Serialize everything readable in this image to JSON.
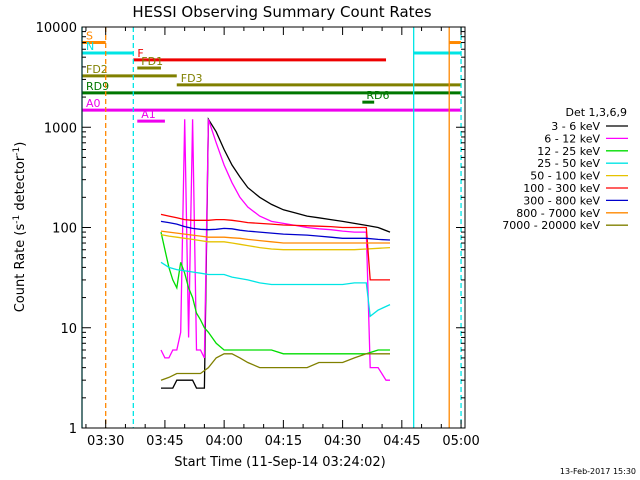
{
  "chart_data": {
    "type": "line",
    "title": "HESSI Observing Summary Count Rates",
    "xlabel": "Start Time (11-Sep-14 03:24:02)",
    "ylabel_main": "Count Rate (s",
    "ylabel_sup1": "-1",
    "ylabel_mid": " detector",
    "ylabel_sup2": "-1",
    "ylabel_end": ")",
    "xlim_minutes": [
      0,
      97
    ],
    "ylim": [
      1,
      10000
    ],
    "yscale": "log",
    "x_ticks": [
      {
        "label": "03:30",
        "minute": 6
      },
      {
        "label": "03:45",
        "minute": 21
      },
      {
        "label": "04:00",
        "minute": 36
      },
      {
        "label": "04:15",
        "minute": 51
      },
      {
        "label": "04:30",
        "minute": 66
      },
      {
        "label": "04:45",
        "minute": 81
      },
      {
        "label": "05:00",
        "minute": 96
      }
    ],
    "y_ticks": [
      {
        "label": "1",
        "value": 1
      },
      {
        "label": "10",
        "value": 10
      },
      {
        "label": "100",
        "value": 100
      },
      {
        "label": "1000",
        "value": 1000
      },
      {
        "label": "10000",
        "value": 10000
      }
    ],
    "legend_title": "Det 1,3,6,9",
    "timestamp": "13-Feb-2017 15:30",
    "series": [
      {
        "name": "3 - 6 keV",
        "color": "#000000",
        "x": [
          20,
          21,
          22,
          23,
          24,
          25,
          26,
          27,
          28,
          29,
          30,
          31,
          32,
          34,
          36,
          38,
          40,
          42,
          45,
          48,
          51,
          54,
          57,
          60,
          63,
          66,
          69,
          72,
          75,
          78
        ],
        "y": [
          2.5,
          2.5,
          2.5,
          2.5,
          3,
          3,
          3,
          3,
          3,
          2.5,
          2.5,
          2.5,
          1200,
          900,
          600,
          420,
          320,
          250,
          200,
          170,
          150,
          140,
          130,
          125,
          120,
          115,
          110,
          105,
          100,
          90
        ]
      },
      {
        "name": "6 - 12 keV",
        "color": "#ff00ff",
        "x": [
          20,
          21,
          22,
          23,
          24,
          25,
          26,
          27,
          28,
          29,
          30,
          31,
          32,
          34,
          36,
          38,
          40,
          42,
          45,
          48,
          51,
          54,
          57,
          60,
          63,
          66,
          69,
          72,
          73,
          75,
          77,
          78
        ],
        "y": [
          6,
          5,
          5,
          6,
          6,
          9,
          1200,
          8,
          1200,
          6,
          6,
          5,
          1200,
          700,
          420,
          280,
          200,
          160,
          130,
          115,
          110,
          105,
          100,
          97,
          95,
          92,
          90,
          90,
          4,
          4,
          3,
          3
        ]
      },
      {
        "name": "12 - 25 keV",
        "color": "#00dd00",
        "x": [
          20,
          21,
          22,
          23,
          24,
          25,
          26,
          27,
          28,
          29,
          30,
          31,
          32,
          34,
          36,
          38,
          40,
          42,
          45,
          48,
          51,
          54,
          57,
          60,
          63,
          66,
          69,
          72,
          75,
          78
        ],
        "y": [
          90,
          60,
          40,
          30,
          25,
          45,
          35,
          25,
          20,
          14,
          12,
          10,
          9,
          7,
          6,
          6,
          6,
          6,
          6,
          6,
          5.5,
          5.5,
          5.5,
          5.5,
          5.5,
          5.5,
          5.5,
          5.5,
          6,
          6
        ]
      },
      {
        "name": "25 - 50 keV",
        "color": "#00e5e5",
        "x": [
          20,
          22,
          24,
          26,
          28,
          30,
          32,
          34,
          36,
          38,
          40,
          42,
          45,
          48,
          51,
          54,
          57,
          60,
          63,
          66,
          69,
          72,
          73,
          75,
          78
        ],
        "y": [
          45,
          40,
          38,
          37,
          36,
          35,
          34,
          34,
          34,
          32,
          31,
          30,
          28,
          27,
          27,
          27,
          27,
          27,
          27,
          27,
          28,
          28,
          13,
          15,
          17
        ]
      },
      {
        "name": "50 - 100 keV",
        "color": "#e6c200",
        "x": [
          20,
          22,
          24,
          26,
          28,
          30,
          32,
          34,
          36,
          38,
          40,
          42,
          45,
          48,
          51,
          54,
          57,
          60,
          63,
          66,
          69,
          72,
          75,
          78
        ],
        "y": [
          85,
          82,
          80,
          78,
          76,
          74,
          72,
          72,
          72,
          70,
          68,
          66,
          63,
          61,
          60,
          60,
          60,
          60,
          60,
          60,
          60,
          61,
          62,
          63
        ]
      },
      {
        "name": "100 - 300 keV",
        "color": "#ff0000",
        "x": [
          20,
          22,
          24,
          26,
          28,
          30,
          32,
          34,
          36,
          38,
          40,
          42,
          45,
          48,
          51,
          54,
          57,
          60,
          63,
          66,
          69,
          72,
          73,
          75,
          78
        ],
        "y": [
          135,
          130,
          125,
          120,
          118,
          118,
          118,
          120,
          120,
          118,
          115,
          112,
          110,
          108,
          106,
          105,
          104,
          103,
          102,
          100,
          100,
          100,
          30,
          30,
          30
        ]
      },
      {
        "name": "300 - 800 keV",
        "color": "#0000cc",
        "x": [
          20,
          22,
          24,
          26,
          28,
          30,
          32,
          34,
          36,
          38,
          40,
          42,
          45,
          48,
          51,
          54,
          57,
          60,
          63,
          66,
          69,
          72,
          75,
          78
        ],
        "y": [
          115,
          112,
          108,
          102,
          98,
          96,
          95,
          96,
          98,
          97,
          94,
          92,
          90,
          88,
          86,
          85,
          84,
          82,
          80,
          78,
          78,
          78,
          76,
          75
        ]
      },
      {
        "name": "800 - 7000 keV",
        "color": "#ff8800",
        "x": [
          20,
          22,
          24,
          26,
          28,
          30,
          32,
          34,
          36,
          38,
          40,
          42,
          45,
          48,
          51,
          54,
          57,
          60,
          63,
          66,
          69,
          72,
          75,
          78
        ],
        "y": [
          92,
          90,
          88,
          86,
          84,
          82,
          80,
          80,
          80,
          79,
          78,
          76,
          74,
          72,
          70,
          70,
          70,
          70,
          70,
          70,
          70,
          70,
          70,
          70
        ]
      },
      {
        "name": "7000 - 20000 keV",
        "color": "#808000",
        "x": [
          20,
          22,
          24,
          26,
          28,
          30,
          32,
          34,
          36,
          38,
          40,
          42,
          45,
          48,
          51,
          54,
          57,
          60,
          63,
          66,
          69,
          72,
          75,
          78
        ],
        "y": [
          3,
          3.2,
          3.5,
          3.5,
          3.5,
          3.5,
          4,
          5,
          5.5,
          5.5,
          5,
          4.5,
          4,
          4,
          4,
          4,
          4,
          4.5,
          4.5,
          4.5,
          5,
          5.5,
          5.5,
          5.5
        ]
      }
    ],
    "flag_bars": [
      {
        "label": "S",
        "color": "#ff8800",
        "y": 7000,
        "segments": [
          [
            0,
            6
          ],
          [
            93,
            96
          ]
        ]
      },
      {
        "label": "N",
        "color": "#00e5e5",
        "y": 5500,
        "segments": [
          [
            0,
            13
          ],
          [
            84,
            96
          ]
        ]
      },
      {
        "label": "F",
        "color": "#ee0000",
        "y": 4700,
        "segments": [
          [
            13,
            77
          ]
        ]
      },
      {
        "label": "FD1",
        "color": "#808000",
        "y": 3900,
        "segments": [
          [
            14,
            20
          ]
        ]
      },
      {
        "label": "FD2",
        "color": "#808000",
        "y": 3250,
        "segments": [
          [
            0,
            24
          ]
        ]
      },
      {
        "label": "FD3",
        "color": "#808000",
        "y": 2650,
        "segments": [
          [
            24,
            96
          ]
        ]
      },
      {
        "label": "RD9",
        "color": "#007700",
        "y": 2200,
        "segments": [
          [
            0,
            96
          ]
        ]
      },
      {
        "label": "RD6",
        "color": "#007700",
        "y": 1780,
        "segments": [
          [
            71,
            74
          ]
        ]
      },
      {
        "label": "A0",
        "color": "#ee00ee",
        "y": 1480,
        "segments": [
          [
            0,
            96
          ]
        ]
      },
      {
        "label": "A1",
        "color": "#ee00ee",
        "y": 1150,
        "segments": [
          [
            14,
            21
          ]
        ]
      }
    ],
    "vlines": [
      {
        "minute": 0,
        "color": "#00e5e5",
        "dashed": false
      },
      {
        "minute": 6,
        "color": "#ff8800",
        "dashed": true
      },
      {
        "minute": 13,
        "color": "#00e5e5",
        "dashed": true
      },
      {
        "minute": 84,
        "color": "#00e5e5",
        "dashed": false
      },
      {
        "minute": 93,
        "color": "#ff8800",
        "dashed": false
      },
      {
        "minute": 96,
        "color": "#00e5e5",
        "dashed": true
      }
    ]
  }
}
